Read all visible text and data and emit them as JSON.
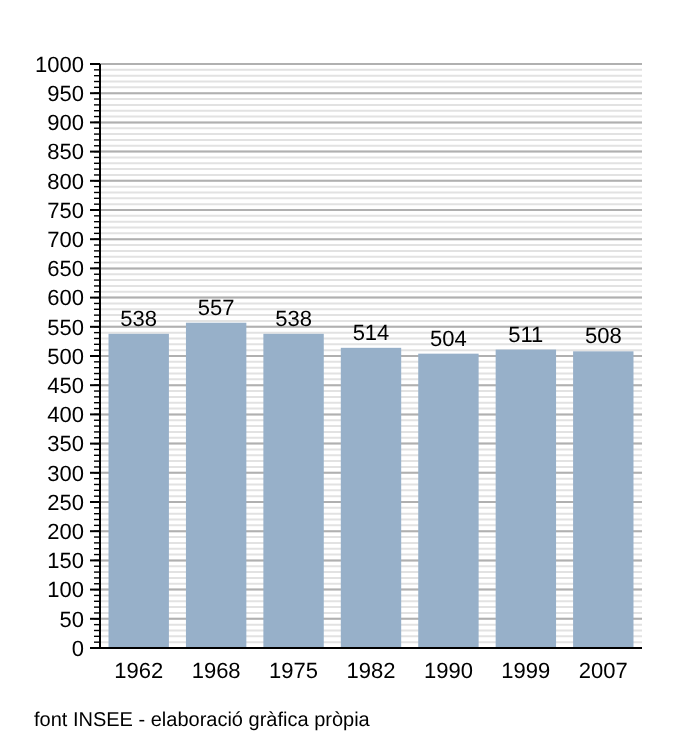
{
  "chart_data": {
    "type": "bar",
    "categories": [
      "1962",
      "1968",
      "1975",
      "1982",
      "1990",
      "1999",
      "2007"
    ],
    "values": [
      538,
      557,
      538,
      514,
      504,
      511,
      508
    ],
    "color": "#97b0c9",
    "ylim": [
      0,
      1000
    ],
    "yticks": [
      0,
      50,
      100,
      150,
      200,
      250,
      300,
      350,
      400,
      450,
      500,
      550,
      600,
      650,
      700,
      750,
      800,
      850,
      900,
      950,
      1000
    ],
    "grid": "y",
    "data_labels": true,
    "annotations": [
      "font INSEE - elaboració gràfica pròpia"
    ]
  }
}
